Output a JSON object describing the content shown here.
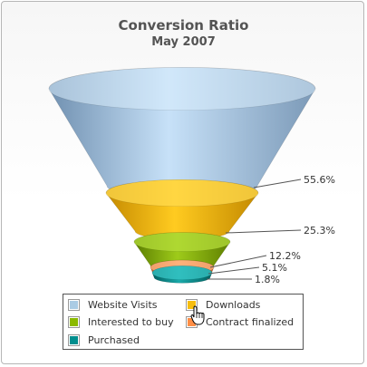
{
  "chart_data": {
    "type": "funnel",
    "title": "Conversion Ratio",
    "subtitle": "May 2007",
    "legend_position": "bottom",
    "series": [
      {
        "name": "Website Visits",
        "percent": 55.6,
        "label": "55.6%",
        "color": "#aacbe4"
      },
      {
        "name": "Downloads",
        "percent": 25.3,
        "label": "25.3%",
        "color": "#f6bd0f"
      },
      {
        "name": "Interested to buy",
        "percent": 12.2,
        "label": "12.2%",
        "color": "#8bba00"
      },
      {
        "name": "Contract finalized",
        "percent": 5.1,
        "label": "5.1%",
        "color": "#ff8e46"
      },
      {
        "name": "Purchased",
        "percent": 1.8,
        "label": "1.8%",
        "color": "#008e8e"
      }
    ]
  },
  "pointer": {
    "icon": "hand-pointer-icon"
  }
}
